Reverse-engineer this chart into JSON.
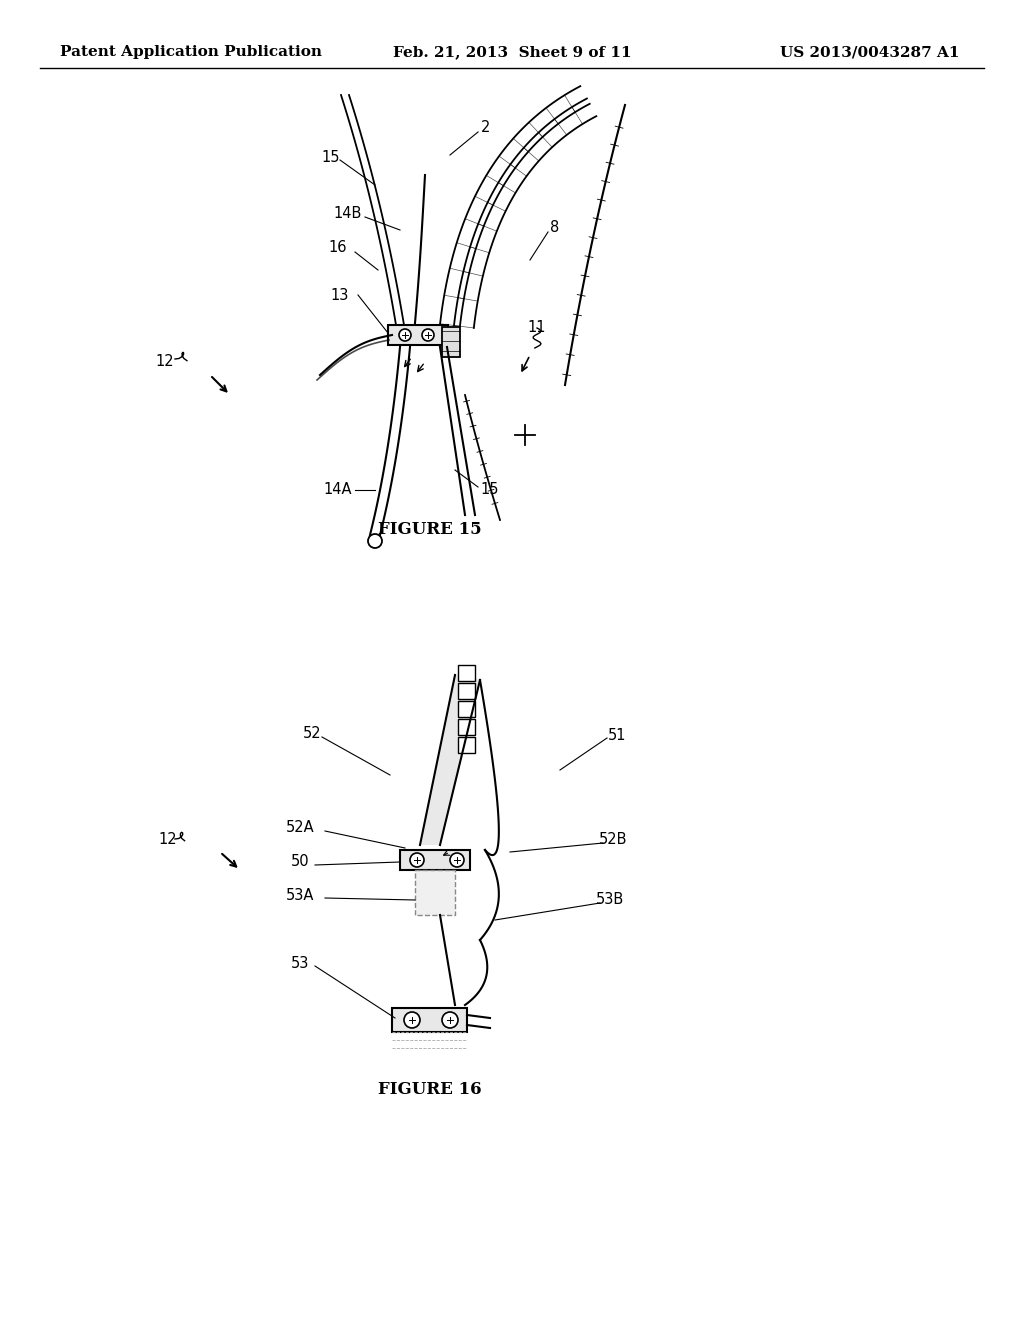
{
  "bg_color": "#ffffff",
  "header_left": "Patent Application Publication",
  "header_center": "Feb. 21, 2013  Sheet 9 of 11",
  "header_right": "US 2013/0043287 A1",
  "fig15_caption": "FIGURE 15",
  "fig16_caption": "FIGURE 16",
  "header_fontsize": 11,
  "caption_fontsize": 12,
  "label_fontsize": 10.5
}
